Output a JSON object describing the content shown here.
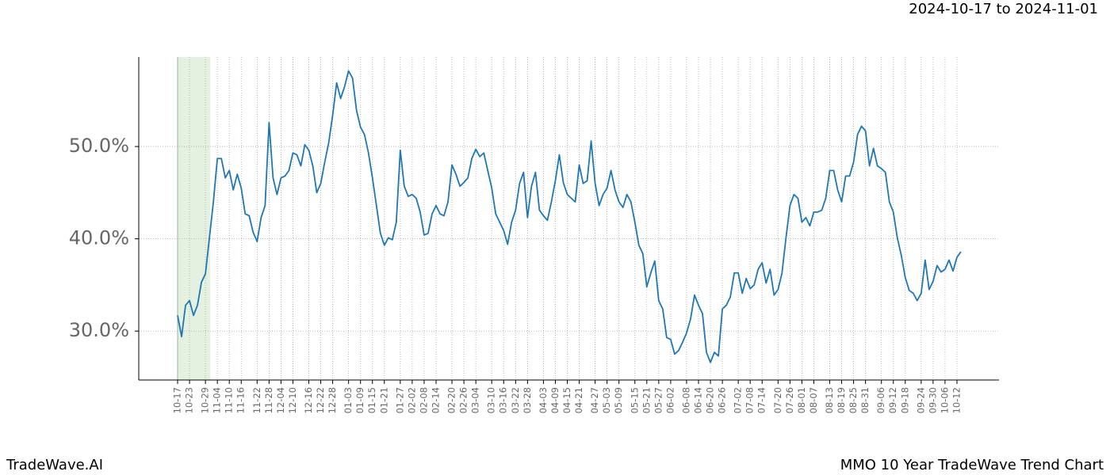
{
  "chart_data": {
    "type": "line",
    "title": "MMO 10 Year TradeWave Trend Chart",
    "subtitle": "2024-10-17 to 2024-11-01",
    "source": "TradeWave.AI",
    "categories": [
      "10-17",
      null,
      null,
      "10-23",
      null,
      null,
      null,
      "10-29",
      null,
      null,
      "11-04",
      null,
      null,
      "11-10",
      null,
      null,
      "11-16",
      null,
      null,
      null,
      "11-22",
      null,
      null,
      "11-28",
      null,
      null,
      "12-04",
      null,
      null,
      "12-10",
      null,
      null,
      null,
      "12-16",
      null,
      null,
      "12-22",
      null,
      null,
      "12-28",
      null,
      null,
      null,
      "01-03",
      null,
      null,
      "01-09",
      null,
      null,
      "01-15",
      null,
      null,
      "01-21",
      null,
      null,
      null,
      "01-27",
      null,
      null,
      "02-02",
      null,
      null,
      "02-08",
      null,
      null,
      "02-14",
      null,
      null,
      null,
      "02-20",
      null,
      null,
      "02-26",
      null,
      null,
      "03-04",
      null,
      null,
      null,
      "03-10",
      null,
      null,
      "03-16",
      null,
      null,
      "03-22",
      null,
      null,
      "03-28",
      null,
      null,
      null,
      "04-03",
      null,
      null,
      "04-09",
      null,
      null,
      "04-15",
      null,
      null,
      "04-21",
      null,
      null,
      null,
      "04-27",
      null,
      null,
      "05-03",
      null,
      null,
      "05-09",
      null,
      null,
      null,
      "05-15",
      null,
      null,
      "05-21",
      null,
      null,
      "05-27",
      null,
      null,
      "06-02",
      null,
      null,
      null,
      "06-08",
      null,
      null,
      "06-14",
      null,
      null,
      "06-20",
      null,
      null,
      "06-26",
      null,
      null,
      null,
      "07-02",
      null,
      null,
      "07-08",
      null,
      null,
      "07-14",
      null,
      null,
      null,
      "07-20",
      null,
      null,
      "07-26",
      null,
      null,
      "08-01",
      null,
      null,
      "08-07",
      null,
      null,
      null,
      "08-13",
      null,
      null,
      "08-19",
      null,
      null,
      "08-25",
      null,
      null,
      "08-31",
      null,
      null,
      null,
      "09-06",
      null,
      null,
      "09-12",
      null,
      null,
      "09-18",
      null,
      null,
      null,
      "09-24",
      null,
      null,
      "09-30",
      null,
      null,
      "10-06",
      null,
      null,
      "10-12",
      null
    ],
    "series": [
      {
        "name": "MMO",
        "color": "#1f77b4",
        "values": [
          31.7,
          29.4,
          32.8,
          33.3,
          31.7,
          32.8,
          35.3,
          36.2,
          40.1,
          44.0,
          48.7,
          48.7,
          46.6,
          47.4,
          45.3,
          47.0,
          45.5,
          42.7,
          42.5,
          40.7,
          39.7,
          42.3,
          43.6,
          52.6,
          46.6,
          44.8,
          46.6,
          46.8,
          47.4,
          49.3,
          49.1,
          47.9,
          50.2,
          49.6,
          47.9,
          45.0,
          46.0,
          48.3,
          50.4,
          53.4,
          56.9,
          55.2,
          56.5,
          58.2,
          57.4,
          53.9,
          52.1,
          51.3,
          49.3,
          46.6,
          43.6,
          40.6,
          39.3,
          40.1,
          39.9,
          41.8,
          49.6,
          45.7,
          44.6,
          44.8,
          44.4,
          42.9,
          40.4,
          40.6,
          42.7,
          43.6,
          42.7,
          42.5,
          44.0,
          48.0,
          47.0,
          45.7,
          46.1,
          46.6,
          48.7,
          49.7,
          48.9,
          49.3,
          47.4,
          45.5,
          42.7,
          41.8,
          40.9,
          39.4,
          41.8,
          43.1,
          46.0,
          47.2,
          42.3,
          45.7,
          47.2,
          43.1,
          42.5,
          42.0,
          44.0,
          46.3,
          49.1,
          46.1,
          44.8,
          44.4,
          44.0,
          48.0,
          46.0,
          46.3,
          50.6,
          46.0,
          43.6,
          44.8,
          45.5,
          47.4,
          45.3,
          44.0,
          43.4,
          44.8,
          44.0,
          41.8,
          39.3,
          38.4,
          34.8,
          36.3,
          37.6,
          33.3,
          32.4,
          29.3,
          29.1,
          27.5,
          27.9,
          28.8,
          29.8,
          31.3,
          33.9,
          32.8,
          31.9,
          27.7,
          26.6,
          27.7,
          27.3,
          32.4,
          32.8,
          33.7,
          36.3,
          36.3,
          34.1,
          35.7,
          34.6,
          35.0,
          36.7,
          37.4,
          35.2,
          36.7,
          33.9,
          34.5,
          36.3,
          40.1,
          43.6,
          44.8,
          44.4,
          41.8,
          42.3,
          41.4,
          42.9,
          42.9,
          43.1,
          44.4,
          47.4,
          47.4,
          45.3,
          44.0,
          46.8,
          46.8,
          48.3,
          51.3,
          52.2,
          51.7,
          47.9,
          49.8,
          47.9,
          47.6,
          47.2,
          44.0,
          42.9,
          40.1,
          38.2,
          35.8,
          34.4,
          34.1,
          33.3,
          34.1,
          37.7,
          34.5,
          35.4,
          37.1,
          36.4,
          36.7,
          37.7,
          36.5,
          38.0,
          38.6
        ]
      }
    ],
    "ylim": [
      24.7,
      59.7
    ],
    "yticks": [
      {
        "value": 30,
        "label": "30.0%"
      },
      {
        "value": 40,
        "label": "40.0%"
      },
      {
        "value": 50,
        "label": "50.0%"
      }
    ],
    "grid": true
  }
}
